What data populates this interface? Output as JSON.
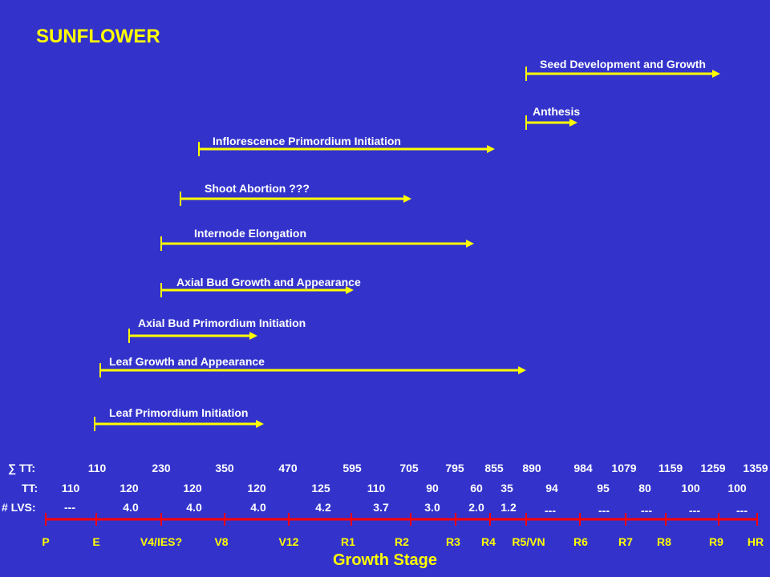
{
  "title": "SUNFLOWER",
  "processes": [
    {
      "label": "Seed Development and Growth"
    },
    {
      "label": "Anthesis"
    },
    {
      "label": "Inflorescence Primordium Initiation"
    },
    {
      "label": "Shoot Abortion ???"
    },
    {
      "label": "Internode Elongation"
    },
    {
      "label": "Axial Bud Growth and Appearance"
    },
    {
      "label": "Axial Bud Primordium Initiation"
    },
    {
      "label": "Leaf Growth and Appearance"
    },
    {
      "label": "Leaf Primordium Initiation"
    }
  ],
  "rows": {
    "sum_tt": {
      "label": "∑ TT:",
      "values": [
        "110",
        "230",
        "350",
        "470",
        "595",
        "705",
        "795",
        "855",
        "890",
        "984",
        "1079",
        "1159",
        "1259",
        "1359"
      ]
    },
    "tt": {
      "label": "TT:",
      "values": [
        "110",
        "120",
        "120",
        "120",
        "125",
        "110",
        "90",
        "60",
        "35",
        "94",
        "95",
        "80",
        "100",
        "100"
      ]
    },
    "lvs": {
      "label": "# LVS:",
      "values": [
        "---",
        "4.0",
        "4.0",
        "4.0",
        "4.2",
        "3.7",
        "3.0",
        "2.0",
        "1.2",
        "---",
        "---",
        "---",
        "---",
        "---"
      ]
    }
  },
  "stages": [
    "P",
    "E",
    "V4/IES?",
    "V8",
    "V12",
    "R1",
    "R2",
    "R3",
    "R4",
    "R5/VN",
    "R6",
    "R7",
    "R8",
    "R9",
    "HR"
  ],
  "axis_title": "Growth Stage",
  "colors": {
    "background": "#3333cc",
    "arrow": "#ffff00",
    "axis": "#ff0000",
    "title": "#ffff00",
    "text": "#ffffff"
  }
}
